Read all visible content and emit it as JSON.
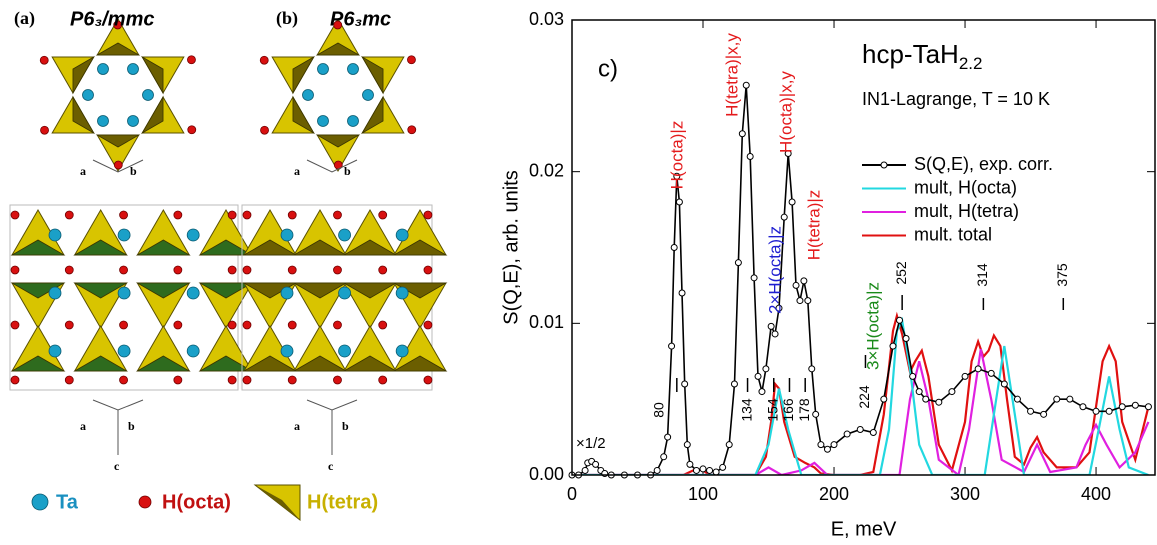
{
  "structures": {
    "panels": [
      {
        "label": "(a)",
        "space_group": "P6₃/mmc",
        "axes_top": [
          "a",
          "b"
        ],
        "axes_bottom": [
          "a",
          "b",
          "c"
        ]
      },
      {
        "label": "(b)",
        "space_group": "P6₃mc",
        "axes_top": [
          "a",
          "b"
        ],
        "axes_bottom": [
          "a",
          "b",
          "c"
        ]
      }
    ],
    "legend": [
      "Ta",
      "H(octa)",
      "H(tetra)"
    ]
  },
  "chart_data": {
    "type": "line",
    "panel_label": "c)",
    "title": "hcp-TaH",
    "title_subscript": "2.2",
    "subtitle": "IN1-Lagrange, T = 10 K",
    "xlabel": "E, meV",
    "ylabel": "S(Q,E), arb. units",
    "xlim": [
      0,
      445
    ],
    "xticks": [
      0,
      100,
      200,
      300,
      400
    ],
    "ylim": [
      0,
      0.03
    ],
    "yticks": [
      {
        "value": 0,
        "label": "0.00"
      },
      {
        "value": 0.01,
        "label": "0.01"
      },
      {
        "value": 0.02,
        "label": "0.02"
      },
      {
        "value": 0.03,
        "label": "0.03"
      }
    ],
    "legend_position": "upper right",
    "scale_note": "×1/2",
    "peak_labels": [
      80,
      134,
      154,
      166,
      178,
      224,
      252,
      314,
      375
    ],
    "annotations": [
      {
        "text": "H(octa)|z",
        "color": "#e41a1c"
      },
      {
        "text": "H(tetra)|x,y",
        "color": "#e41a1c"
      },
      {
        "text": "H(octa)|x,y",
        "color": "#e41a1c"
      },
      {
        "text": "2×H(octa)|z",
        "color": "#1f1fd0"
      },
      {
        "text": "H(tetra)|z",
        "color": "#e41a1c"
      },
      {
        "text": "3×H(octa)|z",
        "color": "#1a8a1a"
      }
    ],
    "series": [
      {
        "name": "S(Q,E), exp. corr.",
        "color": "#000000",
        "marker": "circle",
        "x": [
          0,
          5,
          10,
          12,
          15,
          18,
          22,
          25,
          30,
          40,
          50,
          60,
          65,
          70,
          73,
          76,
          78,
          80,
          82,
          84,
          86,
          88,
          90,
          95,
          100,
          105,
          110,
          115,
          120,
          124,
          127,
          130,
          133,
          136,
          139,
          142,
          145,
          148,
          152,
          155,
          158,
          162,
          165,
          168,
          171,
          174,
          177,
          180,
          183,
          186,
          190,
          195,
          200,
          210,
          220,
          230,
          238,
          245,
          250,
          255,
          260,
          265,
          270,
          280,
          290,
          300,
          310,
          320,
          330,
          340,
          350,
          360,
          370,
          380,
          390,
          400,
          410,
          420,
          430,
          440
        ],
        "values": [
          0,
          0,
          0.0003,
          0.0008,
          0.0009,
          0.0007,
          0.0003,
          0.0001,
          0,
          0,
          0,
          0,
          0.0003,
          0.0012,
          0.0025,
          0.0085,
          0.015,
          0.0197,
          0.018,
          0.012,
          0.006,
          0.002,
          0.0007,
          0.0003,
          0.0004,
          0.0003,
          0.0002,
          0.0005,
          0.002,
          0.006,
          0.014,
          0.0225,
          0.0257,
          0.021,
          0.013,
          0.0065,
          0.0055,
          0.007,
          0.0098,
          0.0093,
          0.011,
          0.017,
          0.0212,
          0.018,
          0.0125,
          0.0115,
          0.0128,
          0.0115,
          0.007,
          0.004,
          0.002,
          0.0017,
          0.002,
          0.0027,
          0.003,
          0.0028,
          0.005,
          0.0085,
          0.0102,
          0.009,
          0.0065,
          0.0055,
          0.005,
          0.0048,
          0.0055,
          0.0065,
          0.007,
          0.0067,
          0.006,
          0.005,
          0.0042,
          0.004,
          0.005,
          0.005,
          0.0045,
          0.0042,
          0.0042,
          0.0045,
          0.0046,
          0.0045
        ]
      },
      {
        "name": "mult, H(octa)",
        "color": "#22d8e0",
        "x": [
          0,
          140,
          150,
          158,
          165,
          175,
          235,
          242,
          248,
          252,
          258,
          265,
          275,
          315,
          322,
          330,
          338,
          345,
          395,
          402,
          410,
          418,
          425,
          440
        ],
        "values": [
          0,
          0,
          0.002,
          0.0057,
          0.003,
          0,
          0,
          0.003,
          0.0095,
          0.0102,
          0.007,
          0.002,
          0,
          0,
          0.004,
          0.0085,
          0.004,
          0,
          0,
          0.003,
          0.0065,
          0.003,
          0.0005,
          0
        ]
      },
      {
        "name": "mult, H(tetra)",
        "color": "#e020e0",
        "x": [
          0,
          140,
          150,
          160,
          175,
          185,
          195,
          250,
          258,
          265,
          272,
          280,
          295,
          303,
          312,
          320,
          328,
          345,
          355,
          365,
          385,
          392,
          400,
          408,
          418,
          430,
          440
        ],
        "values": [
          0,
          0,
          0.0005,
          0,
          0.0003,
          0.0008,
          0,
          0,
          0.005,
          0.0075,
          0.005,
          0.001,
          0,
          0.003,
          0.0083,
          0.005,
          0.001,
          0.0002,
          0.002,
          0.0002,
          0.0005,
          0.002,
          0.0033,
          0.002,
          0.0005,
          0.0015,
          0.0035
        ]
      },
      {
        "name": "mult. total",
        "color": "#e01010",
        "x": [
          0,
          85,
          95,
          100,
          105,
          140,
          148,
          152,
          155,
          158,
          162,
          170,
          178,
          185,
          190,
          200,
          220,
          230,
          238,
          245,
          248,
          252,
          258,
          262,
          267,
          272,
          280,
          290,
          300,
          305,
          310,
          314,
          318,
          322,
          327,
          332,
          338,
          345,
          350,
          355,
          360,
          370,
          385,
          395,
          400,
          405,
          410,
          415,
          420,
          430,
          440
        ],
        "values": [
          0,
          0,
          0.0004,
          0.0003,
          0,
          0,
          0.0012,
          0.0035,
          0.006,
          0.0057,
          0.0035,
          0.0012,
          0.0008,
          0.0005,
          0.0001,
          0,
          0,
          0.0002,
          0.004,
          0.0095,
          0.0105,
          0.0093,
          0.0068,
          0.0075,
          0.0082,
          0.0065,
          0.002,
          0.0003,
          0.0035,
          0.0075,
          0.0088,
          0.0078,
          0.0082,
          0.0092,
          0.0085,
          0.005,
          0.0012,
          0.0007,
          0.0018,
          0.0025,
          0.0015,
          0.0005,
          0.0005,
          0.0015,
          0.0045,
          0.0075,
          0.0085,
          0.0075,
          0.0035,
          0.001,
          0.0045
        ]
      }
    ]
  }
}
